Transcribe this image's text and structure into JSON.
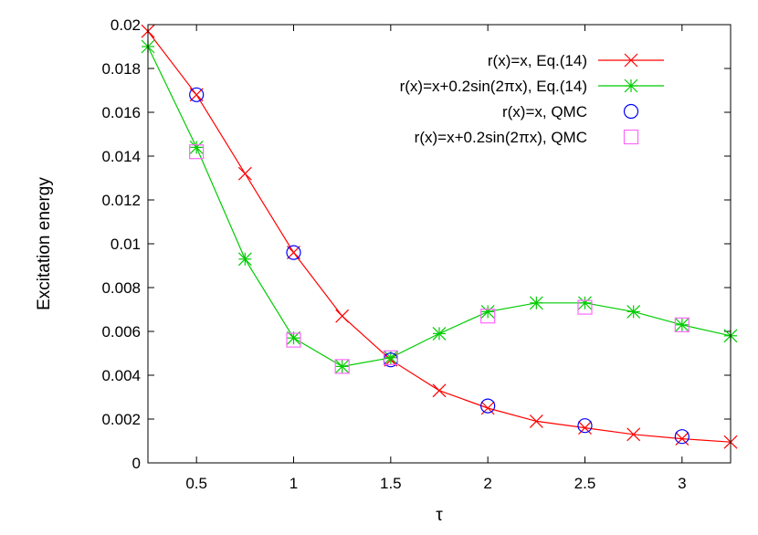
{
  "chart_data": {
    "type": "line",
    "xlabel": "τ",
    "ylabel": "Excitation energy",
    "xlim": [
      0.25,
      3.25
    ],
    "ylim": [
      0,
      0.02
    ],
    "grid": false,
    "legend_placement": "top-right",
    "x_ticks": [
      {
        "value": 0.5,
        "label": "0.5"
      },
      {
        "value": 1,
        "label": "1"
      },
      {
        "value": 1.5,
        "label": "1.5"
      },
      {
        "value": 2,
        "label": "2"
      },
      {
        "value": 2.5,
        "label": "2.5"
      },
      {
        "value": 3,
        "label": "3"
      }
    ],
    "y_ticks": [
      {
        "value": 0,
        "label": "0"
      },
      {
        "value": 0.002,
        "label": "0.002"
      },
      {
        "value": 0.004,
        "label": "0.004"
      },
      {
        "value": 0.006,
        "label": "0.006"
      },
      {
        "value": 0.008,
        "label": "0.008"
      },
      {
        "value": 0.01,
        "label": "0.01"
      },
      {
        "value": 0.012,
        "label": "0.012"
      },
      {
        "value": 0.014,
        "label": "0.014"
      },
      {
        "value": 0.016,
        "label": "0.016"
      },
      {
        "value": 0.018,
        "label": "0.018"
      },
      {
        "value": 0.02,
        "label": "0.02"
      }
    ],
    "series": [
      {
        "name": "r(x)=x, Eq.(14)",
        "style": "line-cross",
        "color": "#ff0000",
        "x": [
          0.25,
          0.5,
          0.75,
          1.0,
          1.25,
          1.5,
          1.75,
          2.0,
          2.25,
          2.5,
          2.75,
          3.0,
          3.25
        ],
        "y": [
          0.0197,
          0.0168,
          0.0132,
          0.0096,
          0.0067,
          0.0047,
          0.0033,
          0.0025,
          0.0019,
          0.0016,
          0.0013,
          0.0011,
          0.00095
        ]
      },
      {
        "name": "r(x)=x+0.2sin(2πx), Eq.(14)",
        "style": "line-star",
        "color": "#00cc00",
        "x": [
          0.25,
          0.5,
          0.75,
          1.0,
          1.25,
          1.5,
          1.75,
          2.0,
          2.25,
          2.5,
          2.75,
          3.0,
          3.25
        ],
        "y": [
          0.019,
          0.0144,
          0.0093,
          0.0057,
          0.0044,
          0.0048,
          0.0059,
          0.0069,
          0.0073,
          0.0073,
          0.0069,
          0.0063,
          0.0058
        ]
      },
      {
        "name": "r(x)=x, QMC",
        "style": "circle",
        "color": "#0000ff",
        "x": [
          0.5,
          1.0,
          1.5,
          2.0,
          2.5,
          3.0
        ],
        "y": [
          0.0168,
          0.0096,
          0.0047,
          0.0026,
          0.0017,
          0.0012
        ]
      },
      {
        "name": "r(x)=x+0.2sin(2πx), QMC",
        "style": "square",
        "color": "#ff66ff",
        "x": [
          0.5,
          1.0,
          1.25,
          1.5,
          2.0,
          2.5,
          3.0
        ],
        "y": [
          0.0142,
          0.0056,
          0.0044,
          0.0048,
          0.0067,
          0.0071,
          0.0063
        ]
      }
    ]
  }
}
